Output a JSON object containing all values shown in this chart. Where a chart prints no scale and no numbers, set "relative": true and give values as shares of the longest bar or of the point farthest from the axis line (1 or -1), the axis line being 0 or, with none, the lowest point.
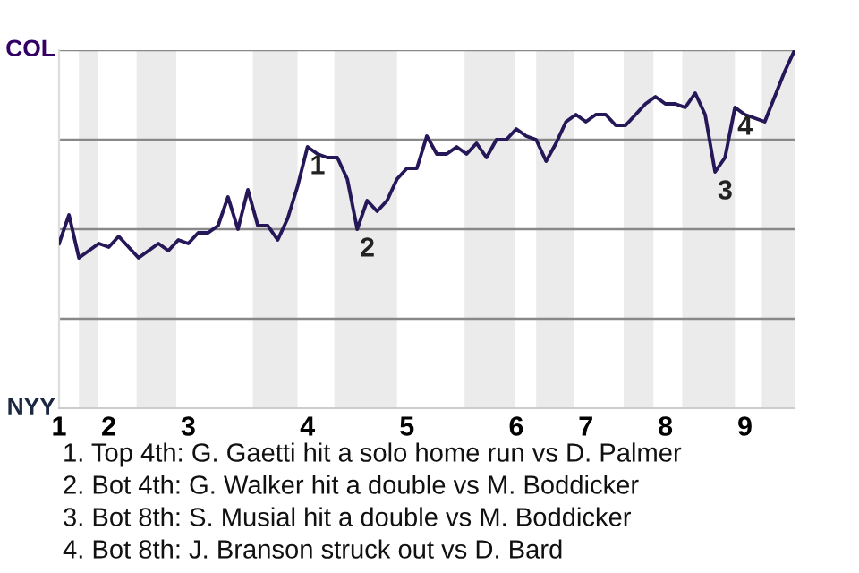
{
  "chart_data": {
    "type": "line",
    "relative": true,
    "categories": [
      "1",
      null,
      null,
      null,
      null,
      "2",
      null,
      null,
      null,
      null,
      null,
      null,
      null,
      "3",
      null,
      null,
      null,
      null,
      null,
      null,
      null,
      null,
      null,
      null,
      null,
      "4",
      null,
      null,
      null,
      null,
      null,
      null,
      null,
      null,
      null,
      "5",
      null,
      null,
      null,
      null,
      null,
      null,
      null,
      null,
      null,
      null,
      "6",
      null,
      null,
      null,
      null,
      null,
      null,
      "7",
      null,
      null,
      null,
      null,
      null,
      null,
      null,
      "8",
      null,
      null,
      null,
      null,
      null,
      null,
      null,
      "9",
      null,
      null,
      null,
      null,
      null
    ],
    "series": [
      {
        "color": "#261758",
        "values": [
          0.46,
          0.54,
          0.42,
          0.44,
          0.46,
          0.45,
          0.48,
          0.45,
          0.42,
          0.44,
          0.46,
          0.44,
          0.47,
          0.46,
          0.49,
          0.49,
          0.51,
          0.59,
          0.5,
          0.61,
          0.51,
          0.51,
          0.47,
          0.53,
          0.62,
          0.73,
          0.71,
          0.7,
          0.7,
          0.64,
          0.5,
          0.58,
          0.55,
          0.58,
          0.64,
          0.67,
          0.67,
          0.76,
          0.71,
          0.71,
          0.73,
          0.71,
          0.74,
          0.7,
          0.75,
          0.75,
          0.78,
          0.76,
          0.75,
          0.69,
          0.74,
          0.8,
          0.82,
          0.8,
          0.82,
          0.82,
          0.79,
          0.79,
          0.82,
          0.85,
          0.87,
          0.85,
          0.85,
          0.84,
          0.88,
          0.82,
          0.66,
          0.7,
          0.84,
          0.82,
          0.81,
          0.8,
          0.87,
          0.94,
          1.0
        ]
      }
    ],
    "grid": "y",
    "annotations": [
      "COL",
      "NYY",
      {
        "text": "1",
        "y": 0.73
      },
      {
        "text": "2",
        "y": 0.5
      },
      {
        "text": "3",
        "y": 0.66
      },
      {
        "text": "4",
        "y": 0.84
      },
      "1. Top 4th: G. Gaetti hit a solo home run vs D. Palmer",
      "2. Bot 4th: G. Walker hit a double vs M. Boddicker",
      "3. Bot 8th: S. Musial hit a double vs M. Boddicker",
      "4. Bot 8th: J. Branson struck out vs D. Bard"
    ]
  }
}
